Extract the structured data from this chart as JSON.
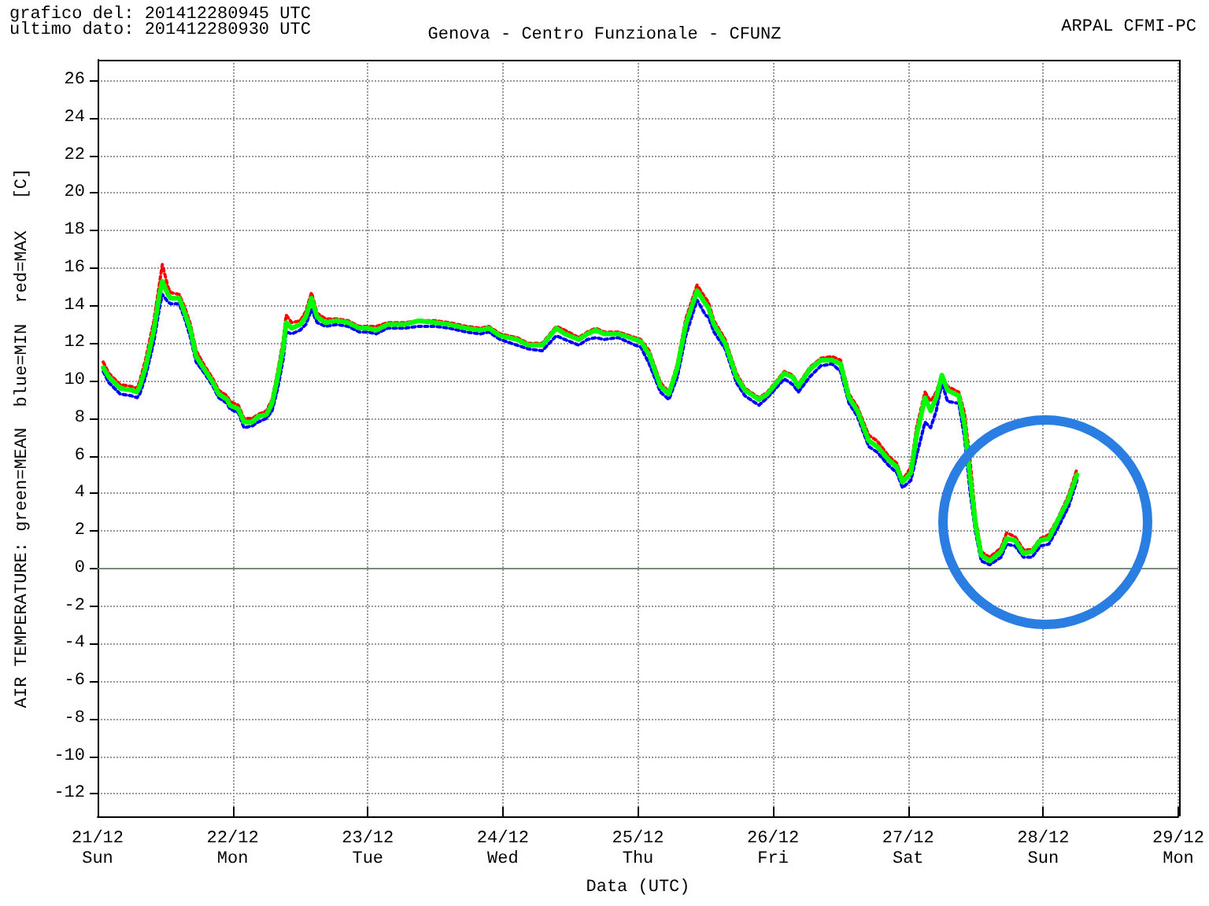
{
  "chart_data": {
    "type": "line",
    "title": "Genova - Centro Funzionale - CFUNZ",
    "xlabel": "Data (UTC)",
    "ylabel": "AIR TEMPERATURE: green=MEAN  blue=MIN  red=MAX   [C]",
    "annotations": [
      "grafico del: 201412280945 UTC",
      "ultimo dato: 201412280930 UTC",
      "ARPAL CFMI-PC"
    ],
    "x": [
      "2014-12-21T01:00",
      "2014-12-21T02:00",
      "2014-12-21T04:00",
      "2014-12-21T06:00",
      "2014-12-21T07:00",
      "2014-12-21T07:30",
      "2014-12-21T08:30",
      "2014-12-21T10:00",
      "2014-12-21T11:00",
      "2014-12-21T11:30",
      "2014-12-21T12:30",
      "2014-12-21T13:00",
      "2014-12-21T14:30",
      "2014-12-21T15:30",
      "2014-12-21T16:30",
      "2014-12-21T17:30",
      "2014-12-21T19:00",
      "2014-12-21T20:30",
      "2014-12-21T21:30",
      "2014-12-21T23:00",
      "2014-12-21T23:30",
      "2014-12-22T01:00",
      "2014-12-22T02:00",
      "2014-12-22T03:30",
      "2014-12-22T04:30",
      "2014-12-22T06:00",
      "2014-12-22T07:00",
      "2014-12-22T08:00",
      "2014-12-22T09:00",
      "2014-12-22T09:30",
      "2014-12-22T10:30",
      "2014-12-22T12:00",
      "2014-12-22T13:00",
      "2014-12-22T14:00",
      "2014-12-22T15:00",
      "2014-12-22T16:30",
      "2014-12-22T18:30",
      "2014-12-22T20:30",
      "2014-12-22T22:30",
      "2014-12-23T00:00",
      "2014-12-23T01:30",
      "2014-12-23T03:30",
      "2014-12-23T06:30",
      "2014-12-23T09:00",
      "2014-12-23T12:00",
      "2014-12-23T14:30",
      "2014-12-23T17:30",
      "2014-12-23T20:00",
      "2014-12-23T21:30",
      "2014-12-23T23:30",
      "2014-12-24T02:30",
      "2014-12-24T04:30",
      "2014-12-24T07:00",
      "2014-12-24T09:30",
      "2014-12-24T11:00",
      "2014-12-24T13:30",
      "2014-12-24T15:00",
      "2014-12-24T16:30",
      "2014-12-24T18:00",
      "2014-12-24T20:30",
      "2014-12-24T23:30",
      "2014-12-25T00:30",
      "2014-12-25T02:00",
      "2014-12-25T04:00",
      "2014-12-25T05:30",
      "2014-12-25T07:00",
      "2014-12-25T08:30",
      "2014-12-25T10:30",
      "2014-12-25T12:00",
      "2014-12-25T12:30",
      "2014-12-25T13:30",
      "2014-12-25T15:30",
      "2014-12-25T17:30",
      "2014-12-25T19:00",
      "2014-12-25T21:30",
      "2014-12-25T23:00",
      "2014-12-26T02:00",
      "2014-12-26T03:30",
      "2014-12-26T04:30",
      "2014-12-26T06:30",
      "2014-12-26T08:30",
      "2014-12-26T10:30",
      "2014-12-26T12:00",
      "2014-12-26T13:30",
      "2014-12-26T15:00",
      "2014-12-26T17:00",
      "2014-12-26T18:30",
      "2014-12-26T20:30",
      "2014-12-26T22:00",
      "2014-12-26T23:00",
      "2014-12-27T00:30",
      "2014-12-27T01:30",
      "2014-12-27T03:00",
      "2014-12-27T04:00",
      "2014-12-27T05:00",
      "2014-12-27T06:00",
      "2014-12-27T07:00",
      "2014-12-27T09:00",
      "2014-12-27T10:00",
      "2014-12-27T11:00",
      "2014-12-27T12:00",
      "2014-12-27T13:00",
      "2014-12-27T14:30",
      "2014-12-27T16:30",
      "2014-12-27T17:30",
      "2014-12-27T19:00",
      "2014-12-27T20:30",
      "2014-12-27T22:00",
      "2014-12-27T23:30",
      "2014-12-28T01:00",
      "2014-12-28T02:30",
      "2014-12-28T04:30",
      "2014-12-28T06:00"
    ],
    "series": [
      {
        "color": "#ff0000",
        "line_style": "dotted",
        "values": [
          11.0,
          10.4,
          9.8,
          9.7,
          9.6,
          10.0,
          11.1,
          13.2,
          15.2,
          16.2,
          15.0,
          14.7,
          14.6,
          13.9,
          13.0,
          11.6,
          10.8,
          10.1,
          9.5,
          9.2,
          8.9,
          8.7,
          8.0,
          8.0,
          8.2,
          8.4,
          9.0,
          10.5,
          12.2,
          13.5,
          13.1,
          13.2,
          13.7,
          14.7,
          13.6,
          13.3,
          13.3,
          13.2,
          12.9,
          12.9,
          12.9,
          13.1,
          13.1,
          13.2,
          13.2,
          13.1,
          12.9,
          12.8,
          12.9,
          12.5,
          12.3,
          12.0,
          12.0,
          12.9,
          12.7,
          12.3,
          12.6,
          12.8,
          12.6,
          12.6,
          12.3,
          12.2,
          11.6,
          9.9,
          9.4,
          10.9,
          13.3,
          15.1,
          14.4,
          14.2,
          13.2,
          12.2,
          10.4,
          9.6,
          9.1,
          9.4,
          10.5,
          10.3,
          9.8,
          10.7,
          11.2,
          11.3,
          11.1,
          9.3,
          8.6,
          7.1,
          6.8,
          6.0,
          5.6,
          4.7,
          5.4,
          7.5,
          9.4,
          8.9,
          9.4,
          10.3,
          9.7,
          9.4,
          8.3,
          5.8,
          2.6,
          0.9,
          0.6,
          1.1,
          1.9,
          1.7,
          1.0,
          1.0,
          1.6,
          1.8,
          2.6,
          3.9,
          5.3
        ]
      },
      {
        "color": "#0000ff",
        "line_style": "dotted",
        "values": [
          10.5,
          9.9,
          9.3,
          9.2,
          9.1,
          9.3,
          10.2,
          12.1,
          13.9,
          14.6,
          14.2,
          14.1,
          14.1,
          13.3,
          12.3,
          11.0,
          10.4,
          9.7,
          9.1,
          8.8,
          8.5,
          8.3,
          7.5,
          7.6,
          7.8,
          8.0,
          8.4,
          9.6,
          11.2,
          12.6,
          12.5,
          12.7,
          13.0,
          13.8,
          13.1,
          12.9,
          13.0,
          12.9,
          12.6,
          12.6,
          12.5,
          12.8,
          12.8,
          12.9,
          12.9,
          12.8,
          12.6,
          12.5,
          12.6,
          12.2,
          11.9,
          11.7,
          11.6,
          12.4,
          12.2,
          11.9,
          12.2,
          12.3,
          12.2,
          12.3,
          11.9,
          11.8,
          10.9,
          9.4,
          9.0,
          10.2,
          12.4,
          14.3,
          13.5,
          13.4,
          12.6,
          11.7,
          9.9,
          9.2,
          8.7,
          9.1,
          10.1,
          9.8,
          9.4,
          10.2,
          10.8,
          10.9,
          10.5,
          8.8,
          8.1,
          6.5,
          6.2,
          5.5,
          5.1,
          4.3,
          4.7,
          6.0,
          7.8,
          7.5,
          8.4,
          9.9,
          8.9,
          8.8,
          7.0,
          4.1,
          1.9,
          0.4,
          0.2,
          0.6,
          1.3,
          1.2,
          0.6,
          0.6,
          1.2,
          1.3,
          2.1,
          3.3,
          4.7
        ]
      },
      {
        "color": "#00ff00",
        "line_style": "solid",
        "values": [
          10.7,
          10.2,
          9.6,
          9.5,
          9.4,
          9.7,
          10.7,
          12.7,
          14.6,
          15.3,
          14.6,
          14.4,
          14.4,
          13.6,
          12.7,
          11.3,
          10.6,
          9.9,
          9.3,
          9.0,
          8.7,
          8.5,
          7.8,
          7.8,
          8.1,
          8.2,
          8.8,
          10.2,
          11.8,
          13.1,
          12.8,
          13.0,
          13.4,
          14.4,
          13.4,
          13.1,
          13.2,
          13.1,
          12.8,
          12.8,
          12.7,
          13.0,
          13.0,
          13.2,
          13.1,
          13.0,
          12.8,
          12.7,
          12.8,
          12.4,
          12.2,
          11.9,
          11.9,
          12.8,
          12.5,
          12.2,
          12.5,
          12.7,
          12.5,
          12.5,
          12.2,
          12.1,
          11.4,
          9.7,
          9.3,
          10.7,
          13.0,
          14.8,
          14.1,
          13.9,
          13.0,
          12.0,
          10.2,
          9.5,
          9.0,
          9.3,
          10.4,
          10.2,
          9.7,
          10.6,
          11.1,
          11.1,
          10.9,
          9.1,
          8.4,
          6.8,
          6.5,
          5.8,
          5.4,
          4.6,
          5.1,
          7.1,
          9.1,
          8.4,
          9.1,
          10.3,
          9.5,
          9.2,
          7.7,
          4.9,
          2.3,
          0.7,
          0.4,
          0.9,
          1.6,
          1.5,
          0.8,
          0.9,
          1.5,
          1.6,
          2.5,
          3.7,
          5.0
        ]
      }
    ],
    "ylim": [
      -13.2,
      27.1
    ],
    "yticks": [
      -12,
      -10,
      -8,
      -6,
      -4,
      -2,
      0,
      2,
      4,
      6,
      8,
      10,
      12,
      14,
      16,
      18,
      20,
      22,
      24,
      26
    ],
    "xlim": [
      "2014-12-21",
      "2014-12-29"
    ],
    "xticks": [
      {
        "value": "2014-12-21",
        "label": "21/12\nSun"
      },
      {
        "value": "2014-12-22",
        "label": "22/12\nMon"
      },
      {
        "value": "2014-12-23",
        "label": "23/12\nTue"
      },
      {
        "value": "2014-12-24",
        "label": "24/12\nWed"
      },
      {
        "value": "2014-12-25",
        "label": "25/12\nThu"
      },
      {
        "value": "2014-12-26",
        "label": "26/12\nFri"
      },
      {
        "value": "2014-12-27",
        "label": "27/12\nSat"
      },
      {
        "value": "2014-12-28",
        "label": "28/12\nSun"
      },
      {
        "value": "2014-12-29",
        "label": "29/12\nMon"
      }
    ],
    "ref_lines": [
      {
        "axis": "y",
        "value": 0,
        "color": "#7a8a7a"
      }
    ],
    "grid": true,
    "marker": "none"
  }
}
